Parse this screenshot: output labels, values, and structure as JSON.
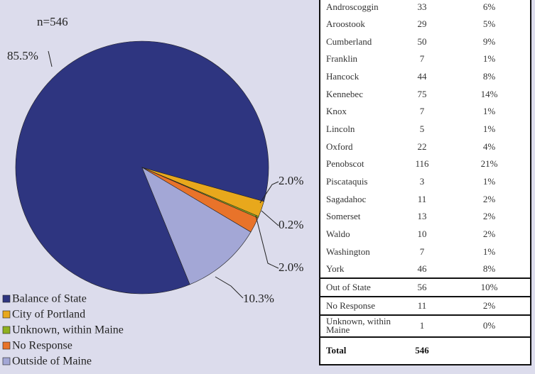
{
  "chart_data": {
    "type": "pie",
    "annotation": "n=546",
    "categories": [
      "Balance of State",
      "City of Portland",
      "Unknown, within Maine",
      "No Response",
      "Outside of Maine"
    ],
    "values": [
      85.5,
      2.0,
      0.2,
      2.0,
      10.3
    ],
    "value_labels": [
      "85.5%",
      "2.0%",
      "0.2%",
      "2.0%",
      "10.3%"
    ],
    "colors": [
      "#2e3580",
      "#e8a81c",
      "#8fb020",
      "#e8732a",
      "#a3a7d6"
    ],
    "legend": "bottom-left"
  },
  "table": {
    "rows": [
      [
        "Androscoggin",
        "33",
        "6%"
      ],
      [
        "Aroostook",
        "29",
        "5%"
      ],
      [
        "Cumberland",
        "50",
        "9%"
      ],
      [
        "Franklin",
        "7",
        "1%"
      ],
      [
        "Hancock",
        "44",
        "8%"
      ],
      [
        "Kennebec",
        "75",
        "14%"
      ],
      [
        "Knox",
        "7",
        "1%"
      ],
      [
        "Lincoln",
        "5",
        "1%"
      ],
      [
        "Oxford",
        "22",
        "4%"
      ],
      [
        "Penobscot",
        "116",
        "21%"
      ],
      [
        "Piscataquis",
        "3",
        "1%"
      ],
      [
        "Sagadahoc",
        "11",
        "2%"
      ],
      [
        "Somerset",
        "13",
        "2%"
      ],
      [
        "Waldo",
        "10",
        "2%"
      ],
      [
        "Washington",
        "7",
        "1%"
      ],
      [
        "York",
        "46",
        "8%"
      ],
      [
        "Out of State",
        "56",
        "10%"
      ],
      [
        "No Response",
        "11",
        "2%"
      ],
      [
        "Unknown, within Maine",
        "1",
        "0%"
      ]
    ],
    "total": {
      "label": "Total",
      "count": "546"
    }
  }
}
